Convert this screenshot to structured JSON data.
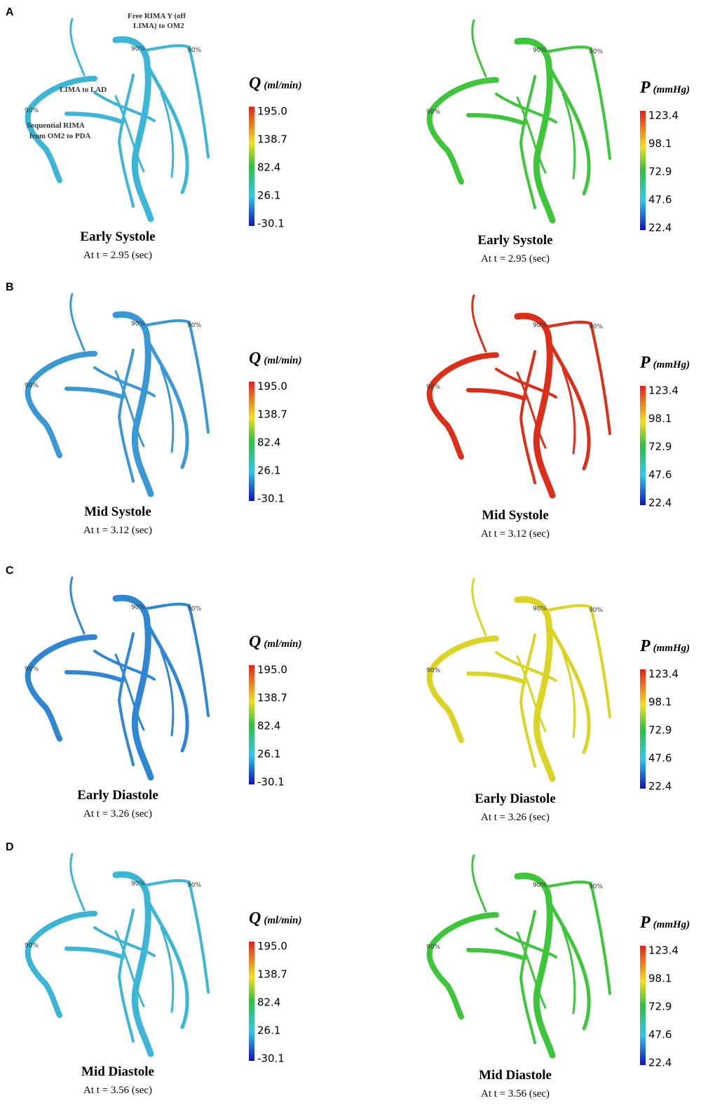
{
  "stenosis_label": "90%",
  "annotations": {
    "free_rima": [
      "Free RIMA Y (off",
      "LIMA) to OM2"
    ],
    "lima": "LIMA to LAD",
    "sequential_rima": [
      "Sequential RIMA",
      "from OM2 to PDA"
    ]
  },
  "colorbars": {
    "flow": {
      "symbol": "Q",
      "unit": "(ml/min)",
      "ticks": [
        "195.0",
        "138.7",
        "82.4",
        "26.1",
        "-30.1"
      ]
    },
    "pressure": {
      "symbol": "P",
      "unit": "(mmHg)",
      "ticks": [
        "123.4",
        "98.1",
        "72.9",
        "47.6",
        "22.4"
      ]
    }
  },
  "panels": [
    {
      "label": "A",
      "phase": "Early Systole",
      "time": "At t = 2.95 (sec)",
      "flow_color": "#3bb6d6",
      "pressure_color": "#3ec63a"
    },
    {
      "label": "B",
      "phase": "Mid Systole",
      "time": "At t = 3.12 (sec)",
      "flow_color": "#3a98d4",
      "pressure_color": "#dd2e1a"
    },
    {
      "label": "C",
      "phase": "Early Diastole",
      "time": "At t = 3.26 (sec)",
      "flow_color": "#2f86d2",
      "pressure_color": "#dcd422"
    },
    {
      "label": "D",
      "phase": "Mid Diastole",
      "time": "At t = 3.56 (sec)",
      "flow_color": "#3bb6d6",
      "pressure_color": "#3ec63a"
    }
  ]
}
